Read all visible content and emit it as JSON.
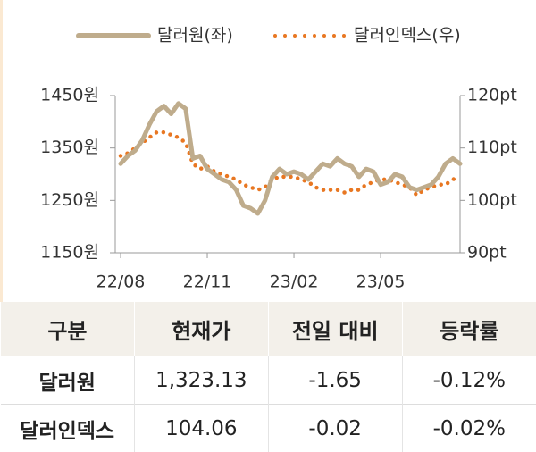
{
  "chart_data": {
    "type": "line",
    "categories": [
      "22/08",
      null,
      null,
      null,
      null,
      null,
      null,
      null,
      null,
      null,
      null,
      null,
      "22/11",
      null,
      null,
      null,
      null,
      null,
      null,
      null,
      null,
      null,
      null,
      null,
      "23/02",
      null,
      null,
      null,
      null,
      null,
      null,
      null,
      null,
      null,
      null,
      null,
      "23/05",
      null,
      null,
      null,
      null,
      null,
      null,
      null,
      null,
      null,
      null,
      null
    ],
    "series": [
      {
        "name": "달러원(좌)",
        "color": "#bfac8c",
        "style": "solid",
        "values": [
          1320,
          1335,
          1345,
          1365,
          1395,
          1420,
          1430,
          1415,
          1435,
          1425,
          1330,
          1335,
          1310,
          1300,
          1290,
          1285,
          1270,
          1240,
          1235,
          1225,
          1250,
          1295,
          1310,
          1300,
          1305,
          1300,
          1290,
          1305,
          1320,
          1315,
          1330,
          1320,
          1315,
          1295,
          1310,
          1305,
          1280,
          1285,
          1300,
          1295,
          1275,
          1270,
          1275,
          1280,
          1295,
          1320,
          1330,
          1320
        ]
      },
      {
        "name": "달러인덱스(우)",
        "color": "#e87722",
        "style": "dotted",
        "axis": "y2",
        "values": [
          108.5,
          109,
          110,
          111,
          112,
          113,
          113,
          112.5,
          112,
          111,
          107,
          106,
          106.5,
          105.5,
          105,
          104.5,
          104,
          103,
          102.5,
          102,
          102.5,
          104,
          104.5,
          104.5,
          104.5,
          104,
          103.5,
          102.5,
          102,
          102,
          102,
          101.5,
          102,
          102,
          103,
          103.5,
          104,
          104,
          103.5,
          103,
          102.5,
          101,
          102,
          102.5,
          103,
          103,
          104,
          104.5
        ]
      }
    ],
    "ylim": [
      1150,
      1450
    ],
    "yticks": [
      {
        "value": 1150,
        "label": "1150원"
      },
      {
        "value": 1250,
        "label": "1250원"
      },
      {
        "value": 1350,
        "label": "1350원"
      },
      {
        "value": 1450,
        "label": "1450원"
      }
    ],
    "y2lim": [
      90,
      120
    ],
    "y2ticks": [
      {
        "value": 90,
        "label": "90pt"
      },
      {
        "value": 100,
        "label": "100pt"
      },
      {
        "value": 110,
        "label": "110pt"
      },
      {
        "value": 120,
        "label": "120pt"
      }
    ],
    "legend": "top"
  },
  "table": {
    "header": [
      "구분",
      "현재가",
      "전일 대비",
      "등락률"
    ],
    "rows": [
      [
        "달러원",
        "1,323.13",
        "-1.65",
        "-0.12%"
      ],
      [
        "달러인덱스",
        "104.06",
        "-0.02",
        "-0.02%"
      ]
    ]
  }
}
